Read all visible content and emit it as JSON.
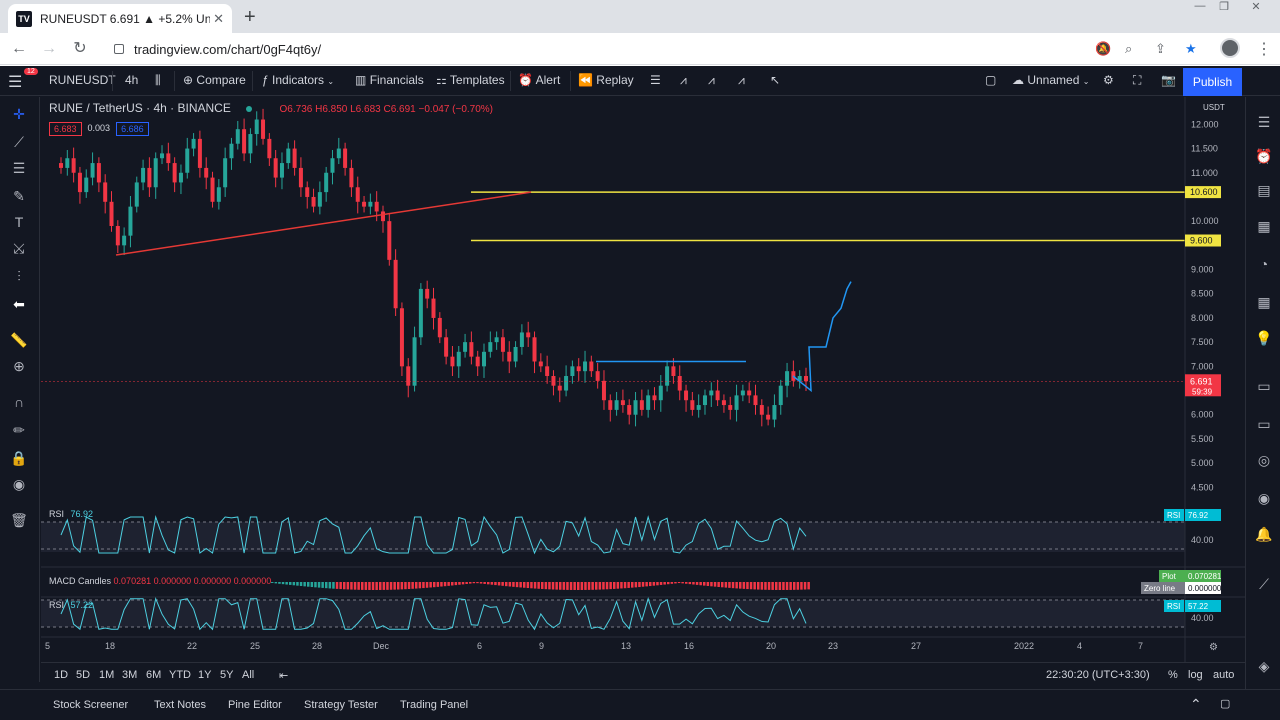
{
  "browser": {
    "tab_title": "RUNEUSDT 6.691 ▲ +5.2% Unna",
    "tab_favicon": "TV",
    "url": "tradingview.com/chart/0gF4qt6y/",
    "window_controls": [
      "—",
      "❐",
      "✕"
    ]
  },
  "topbar": {
    "menu_badge": "12",
    "symbol": "RUNEUSDT",
    "interval": "4h",
    "compare": "Compare",
    "indicators": "Indicators",
    "financials": "Financials",
    "templates": "Templates",
    "alert": "Alert",
    "replay": "Replay",
    "layout_name": "Unnamed",
    "publish": "Publish"
  },
  "legend": {
    "pair": "RUNE / TetherUS · 4h · BINANCE",
    "ohlc": "O6.736 H6.850 L6.683 C6.691 −0.047 (−0.70%)",
    "sell": "6.683",
    "spread": "0.003",
    "buy": "6.686"
  },
  "panes": {
    "rsi1_label": "RSI",
    "rsi1_value": "76.92",
    "macd_label": "MACD Candles",
    "macd_values": "0.070281  0.000000  0.000000  0.000000",
    "rsi2_label": "RSI",
    "rsi2_value": "57.22"
  },
  "price_axis": {
    "currency": "USDT",
    "ticks": [
      "12.000",
      "11.500",
      "11.000",
      "10.000",
      "9.000",
      "8.500",
      "8.000",
      "7.500",
      "7.000",
      "6.000",
      "5.500",
      "5.000",
      "4.500"
    ],
    "line_labels": [
      "10.600",
      "9.600"
    ],
    "current_price": "6.691",
    "countdown": "59:39",
    "rsi1_tag": "RSI",
    "rsi1_tag_value": "76.92",
    "rsi1_level": "40.00",
    "plot_tag": "Plot",
    "plot_value": "0.070281",
    "zero_tag": "Zero line",
    "zero_value": "0.000000",
    "rsi2_tag": "RSI",
    "rsi2_tag_value": "57.22",
    "rsi2_level": "40.00"
  },
  "time_axis": {
    "ticks": [
      "5",
      "18",
      "22",
      "25",
      "28",
      "Dec",
      "6",
      "9",
      "13",
      "16",
      "20",
      "23",
      "27",
      "4",
      "7",
      "2022"
    ]
  },
  "timeframes": {
    "items": [
      "1D",
      "5D",
      "1M",
      "3M",
      "6M",
      "YTD",
      "1Y",
      "5Y",
      "All"
    ],
    "clock": "22:30:20 (UTC+3:30)",
    "percent": "%",
    "log": "log",
    "auto": "auto"
  },
  "footer": {
    "items": [
      "Stock Screener",
      "Text Notes",
      "Pine Editor",
      "Strategy Tester",
      "Trading Panel"
    ]
  },
  "colors": {
    "background": "#131722",
    "up": "#26a69a",
    "down": "#f23645",
    "accent": "#2962ff",
    "horizontal_lines": "#f0e442",
    "trendline": "#e53935",
    "drawing": "#2196f3",
    "rsi": "#4dd0e1"
  },
  "chart_data": {
    "type": "candlestick",
    "title": "RUNE / TetherUS · 4h · BINANCE",
    "ylim": [
      4.3,
      12.4
    ],
    "closes": [
      11.1,
      11.3,
      11.0,
      10.6,
      10.9,
      11.2,
      10.8,
      10.4,
      9.9,
      9.5,
      9.7,
      10.3,
      10.8,
      11.1,
      10.7,
      11.3,
      11.4,
      11.2,
      10.8,
      11.0,
      11.5,
      11.7,
      11.1,
      10.9,
      10.4,
      10.7,
      11.3,
      11.6,
      11.9,
      11.4,
      11.8,
      12.1,
      11.7,
      11.3,
      10.9,
      11.2,
      11.5,
      11.1,
      10.7,
      10.5,
      10.3,
      10.6,
      11.0,
      11.3,
      11.5,
      11.1,
      10.7,
      10.4,
      10.3,
      10.4,
      10.2,
      10.0,
      9.2,
      8.2,
      7.0,
      6.6,
      7.6,
      8.6,
      8.4,
      8.0,
      7.6,
      7.2,
      7.0,
      7.3,
      7.5,
      7.2,
      7.0,
      7.3,
      7.5,
      7.6,
      7.3,
      7.1,
      7.4,
      7.7,
      7.6,
      7.1,
      7.0,
      6.8,
      6.6,
      6.5,
      6.8,
      7.0,
      6.9,
      7.1,
      6.9,
      6.7,
      6.3,
      6.1,
      6.3,
      6.2,
      6.0,
      6.3,
      6.1,
      6.4,
      6.3,
      6.6,
      7.0,
      6.8,
      6.5,
      6.3,
      6.1,
      6.2,
      6.4,
      6.5,
      6.3,
      6.2,
      6.1,
      6.4,
      6.5,
      6.4,
      6.2,
      6.0,
      5.9,
      6.2,
      6.6,
      6.9,
      6.7,
      6.8,
      6.691
    ],
    "horizontal_levels": [
      10.6,
      9.6
    ],
    "trendline": {
      "from": [
        9.3
      ],
      "to": [
        10.6
      ]
    },
    "rsi1_last": 76.92,
    "rsi2_last": 57.22,
    "macd_last": 0.070281
  }
}
